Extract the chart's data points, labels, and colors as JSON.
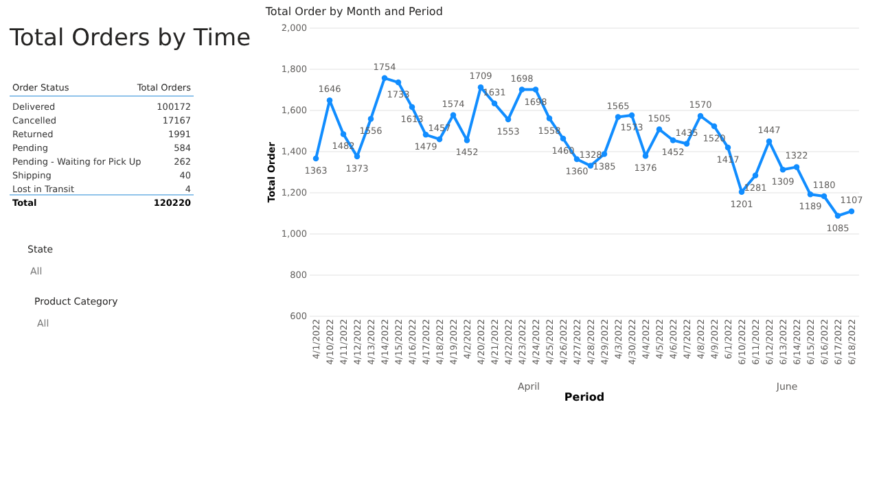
{
  "chart_data": [
    {
      "type": "other",
      "title": "Total Orders by Time",
      "categories": [
        "Delivered",
        "Cancelled",
        "Returned",
        "Pending",
        "Pending - Waiting for Pick Up",
        "Shipping",
        "Lost in Transit"
      ],
      "values": [
        100172,
        17167,
        1991,
        584,
        262,
        40,
        4
      ],
      "data_labels": true,
      "annotations": [
        "Order Status",
        "Total Orders",
        "Total",
        "120220",
        "State",
        "All",
        "Product Category",
        "All"
      ]
    },
    {
      "type": "line",
      "title": "Total Order by Month and Period",
      "xlabel": "Period",
      "ylabel": "Total Order",
      "categories": [
        "4/1/2022",
        "4/10/2022",
        "4/11/2022",
        "4/12/2022",
        "4/13/2022",
        "4/14/2022",
        "4/15/2022",
        "4/16/2022",
        "4/17/2022",
        "4/18/2022",
        "4/19/2022",
        "4/2/2022",
        "4/20/2022",
        "4/21/2022",
        "4/22/2022",
        "4/23/2022",
        "4/24/2022",
        "4/25/2022",
        "4/26/2022",
        "4/27/2022",
        "4/28/2022",
        "4/29/2022",
        "4/3/2022",
        "4/30/2022",
        "4/4/2022",
        "4/5/2022",
        "4/6/2022",
        "4/7/2022",
        "4/8/2022",
        "4/9/2022",
        "6/1/2022",
        "6/10/2022",
        "6/11/2022",
        "6/12/2022",
        "6/13/2022",
        "6/14/2022",
        "6/15/2022",
        "6/16/2022",
        "6/17/2022",
        "6/18/2022"
      ],
      "series": [
        {
          "color": "#118dff",
          "values": [
            1363,
            1646,
            1482,
            1373,
            1556,
            1754,
            1733,
            1613,
            1479,
            1457,
            1574,
            1452,
            1709,
            1631,
            1553,
            1698,
            1698,
            1558,
            1460,
            1360,
            1328,
            1385,
            1565,
            1573,
            1376,
            1505,
            1452,
            1435,
            1570,
            1520,
            1417,
            1201,
            1281,
            1447,
            1309,
            1322,
            1189,
            1180,
            1085,
            1107
          ]
        }
      ],
      "ylim": [
        600,
        2000
      ],
      "yticks": [
        {
          "value": 600,
          "label": "600"
        },
        {
          "value": 800,
          "label": "800"
        },
        {
          "value": 1000,
          "label": "1,000"
        },
        {
          "value": 1200,
          "label": "1,200"
        },
        {
          "value": 1400,
          "label": "1,400"
        },
        {
          "value": 1600,
          "label": "1,600"
        },
        {
          "value": 1800,
          "label": "1,800"
        },
        {
          "value": 2000,
          "label": "2,000"
        }
      ],
      "grid": "y",
      "marker": "circle",
      "line_style": "solid",
      "data_labels": true,
      "legend": false,
      "annotations": [
        "April",
        "June"
      ]
    }
  ]
}
